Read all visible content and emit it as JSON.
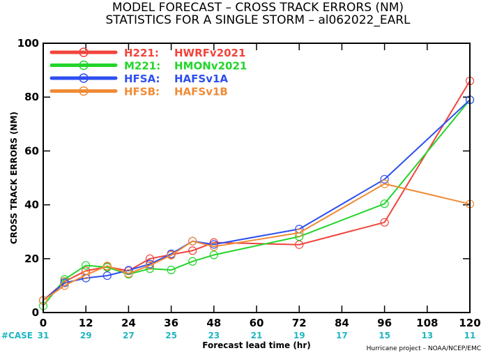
{
  "title_line1": "MODEL FORECAST – CROSS TRACK ERRORS (NM)",
  "title_line2": "STATISTICS FOR A SINGLE STORM – al062022_EARL",
  "credit": "Hurricane project – NOAA/NCEP/EMC",
  "case_label": "#CASE",
  "case_color": "#1fb5c2",
  "chart_data": {
    "type": "line",
    "title": "MODEL FORECAST – CROSS TRACK ERRORS (NM)",
    "subtitle": "STATISTICS FOR A SINGLE STORM – al062022_EARL",
    "xlabel": "Forecast lead time (hr)",
    "ylabel": "CROSS TRACK ERRORS (NM)",
    "xlim": [
      0,
      120
    ],
    "ylim": [
      0,
      100
    ],
    "xticks": [
      0,
      12,
      24,
      36,
      48,
      60,
      72,
      84,
      96,
      108,
      120
    ],
    "yticks": [
      0,
      20,
      40,
      60,
      80,
      100
    ],
    "grid": false,
    "legend_position": "top-left",
    "case_hours": [
      0,
      12,
      24,
      36,
      48,
      60,
      72,
      84,
      96,
      108,
      120
    ],
    "case_counts": [
      31,
      29,
      27,
      25,
      23,
      21,
      19,
      17,
      15,
      13,
      11
    ],
    "series": [
      {
        "code": "H221:",
        "name": "HWRFv2021",
        "color": "#f0443c",
        "x": [
          0,
          6,
          12,
          18,
          24,
          30,
          36,
          42,
          48,
          72,
          96,
          120
        ],
        "y": [
          4.5,
          11.5,
          15.5,
          17,
          15.5,
          20,
          21.5,
          23,
          26,
          25.2,
          33.5,
          86
        ]
      },
      {
        "code": "M221:",
        "name": "HMONv2021",
        "color": "#22d52a",
        "x": [
          0,
          6,
          12,
          18,
          24,
          30,
          36,
          42,
          48,
          72,
          96,
          120
        ],
        "y": [
          2.5,
          12.3,
          17.5,
          16.8,
          14.2,
          16.3,
          15.8,
          19,
          21.4,
          28.2,
          40.4,
          79
        ]
      },
      {
        "code": "HFSA:",
        "name": "HAFSv1A",
        "color": "#2d4ef0",
        "x": [
          0,
          6,
          12,
          18,
          24,
          30,
          36,
          42,
          48,
          72,
          96,
          120
        ],
        "y": [
          4.5,
          11,
          12.8,
          13.7,
          15.7,
          18,
          21.8,
          26.5,
          25.3,
          31,
          49.5,
          79
        ]
      },
      {
        "code": "HFSB:",
        "name": "HAFSv1B",
        "color": "#f08a35",
        "x": [
          0,
          6,
          12,
          18,
          24,
          30,
          36,
          42,
          48,
          72,
          96,
          120
        ],
        "y": [
          4.5,
          10,
          14,
          17.3,
          14.5,
          17.5,
          21.3,
          26.5,
          24.5,
          29.6,
          47.8,
          40.3
        ]
      }
    ]
  }
}
